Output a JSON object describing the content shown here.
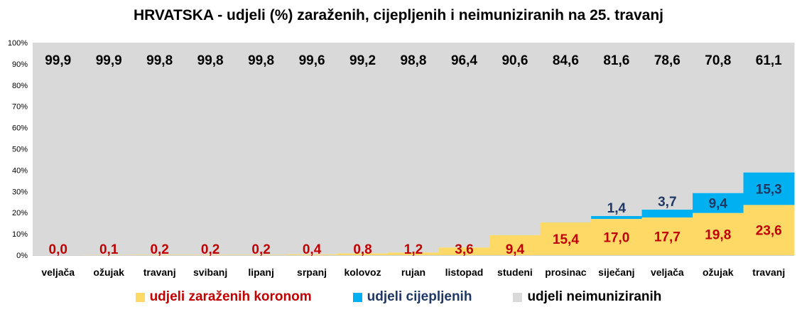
{
  "colors": {
    "infected": "#ffd966",
    "vaccinated": "#00b0f0",
    "unimmunized": "#d9d9d9",
    "label_infected": "#c00000",
    "label_vaccinated": "#1f3864",
    "label_unimmunized": "#000000"
  },
  "chart_data": {
    "type": "bar",
    "stacked": true,
    "title": "HRVATSKA - udjeli (%) zaraženih, cijepljenih i neimuniziranih na 25. travanj",
    "categories": [
      "veljača",
      "ožujak",
      "travanj",
      "svibanj",
      "lipanj",
      "srpanj",
      "kolovoz",
      "rujan",
      "listopad",
      "studeni",
      "prosinac",
      "siječanj",
      "veljača",
      "ožujak",
      "travanj"
    ],
    "ylim": [
      0,
      100
    ],
    "yticks": [
      "0%",
      "10%",
      "20%",
      "30%",
      "40%",
      "50%",
      "60%",
      "70%",
      "80%",
      "90%",
      "100%"
    ],
    "legend_position": "bottom",
    "series": [
      {
        "name": "udjeli zaraženih koronom",
        "key": "infected",
        "values": [
          0.0,
          0.1,
          0.2,
          0.2,
          0.2,
          0.4,
          0.8,
          1.2,
          3.6,
          9.4,
          15.4,
          17.0,
          17.7,
          19.8,
          23.6
        ],
        "labels": [
          "0,0",
          "0,1",
          "0,2",
          "0,2",
          "0,2",
          "0,4",
          "0,8",
          "1,2",
          "3,6",
          "9,4",
          "15,4",
          "17,0",
          "17,7",
          "19,8",
          "23,6"
        ]
      },
      {
        "name": "udjeli cijepljenih",
        "key": "vaccinated",
        "values": [
          0,
          0,
          0,
          0,
          0,
          0,
          0,
          0,
          0,
          0,
          0,
          1.4,
          3.7,
          9.4,
          15.3
        ],
        "labels": [
          "",
          "",
          "",
          "",
          "",
          "",
          "",
          "",
          "",
          "",
          "",
          "1,4",
          "3,7",
          "9,4",
          "15,3"
        ]
      },
      {
        "name": "udjeli neimuniziranih",
        "key": "unimmunized",
        "values": [
          99.9,
          99.9,
          99.8,
          99.8,
          99.8,
          99.6,
          99.2,
          98.8,
          96.4,
          90.6,
          84.6,
          81.6,
          78.6,
          70.8,
          61.1
        ],
        "labels": [
          "99,9",
          "99,9",
          "99,8",
          "99,8",
          "99,8",
          "99,6",
          "99,2",
          "98,8",
          "96,4",
          "90,6",
          "84,6",
          "81,6",
          "78,6",
          "70,8",
          "61,1"
        ]
      }
    ]
  }
}
